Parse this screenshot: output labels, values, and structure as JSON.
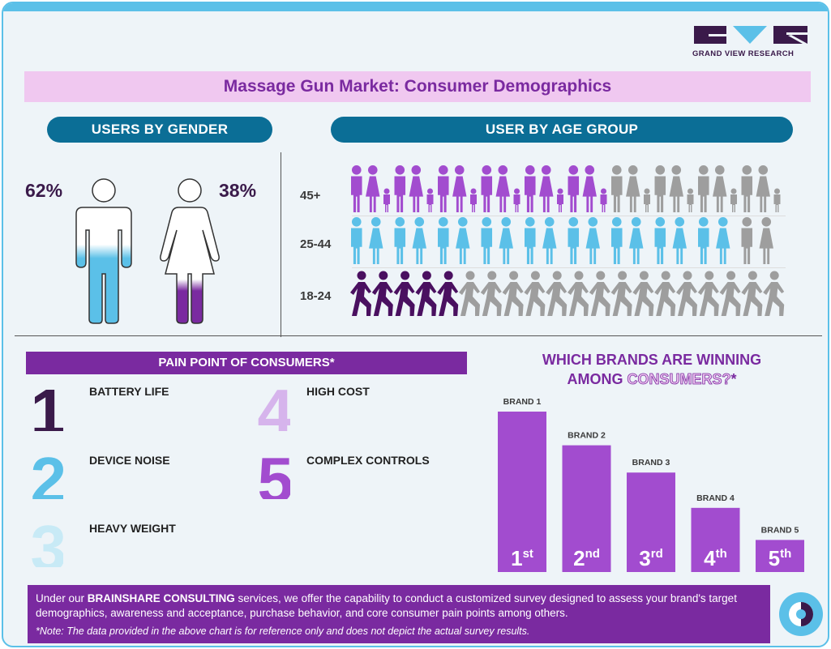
{
  "header": {
    "title": "Massage Gun Market: Consumer Demographics",
    "logo_text": "GRAND VIEW RESEARCH",
    "logo_icon": "grand-view-research-logo"
  },
  "gender": {
    "heading": "USERS BY GENDER",
    "male_pct": "62%",
    "female_pct": "38%",
    "male_icon": "male-figure-icon",
    "female_icon": "female-figure-icon"
  },
  "age": {
    "heading": "USER BY AGE GROUP",
    "groups": [
      {
        "label": "45+",
        "icon": "family-icon",
        "total": 10,
        "filled": 6,
        "color": "#a24ccf"
      },
      {
        "label": "25-44",
        "icon": "couple-icon",
        "total": 10,
        "filled": 9,
        "color": "#5bc0e8"
      },
      {
        "label": "18-24",
        "icon": "walking-person-icon",
        "total": 20,
        "filled": 5,
        "color": "#4a1060"
      }
    ],
    "inactive_color": "#9e9e9e"
  },
  "pain": {
    "heading": "PAIN POINT OF CONSUMERS*",
    "items": [
      {
        "num": "1",
        "label": "BATTERY LIFE",
        "color": "#3a1a4a"
      },
      {
        "num": "2",
        "label": "DEVICE NOISE",
        "color": "#5bc0e8"
      },
      {
        "num": "3",
        "label": "HEAVY WEIGHT",
        "color": "#c8eaf6"
      },
      {
        "num": "4",
        "label": "HIGH COST",
        "color": "#d6b4ec"
      },
      {
        "num": "5",
        "label": "COMPLEX CONTROLS",
        "color": "#a24ccf"
      }
    ]
  },
  "brands": {
    "heading_line1": "WHICH BRANDS ARE WINNING",
    "heading_line2_a": "AMONG ",
    "heading_line2_b": "CONSUMERS?",
    "heading_line2_c": "*",
    "bar_color": "#a24ccf"
  },
  "chart_data": [
    {
      "type": "bar",
      "categories": [
        "Male",
        "Female"
      ],
      "values": [
        62,
        38
      ],
      "title": "USERS BY GENDER"
    },
    {
      "type": "bar",
      "title": "USER BY AGE GROUP",
      "categories": [
        "45+",
        "25-44",
        "18-24"
      ],
      "values": [
        60,
        90,
        25
      ]
    },
    {
      "type": "bar",
      "title": "WHICH BRANDS ARE WINNING AMONG CONSUMERS?*",
      "categories": [
        "BRAND 1",
        "BRAND 2",
        "BRAND 3",
        "BRAND 4",
        "BRAND 5"
      ],
      "values": [
        100,
        79,
        62,
        40,
        20
      ],
      "ranks": [
        "1",
        "2",
        "3",
        "4",
        "5"
      ],
      "suffixes": [
        "st",
        "nd",
        "rd",
        "th",
        "th"
      ]
    }
  ],
  "footer": {
    "text_a": "Under our ",
    "text_bold": "BRAINSHARE CONSULTING",
    "text_b": " services, we offer the capability to conduct a customized survey designed to assess your brand's target demographics, awareness and acceptance, purchase behavior, and core consumer pain points among others.",
    "note": "*Note: The data provided in the above chart is for reference only and does not depict the actual survey results.",
    "icon": "brainshare-circle-icon"
  }
}
